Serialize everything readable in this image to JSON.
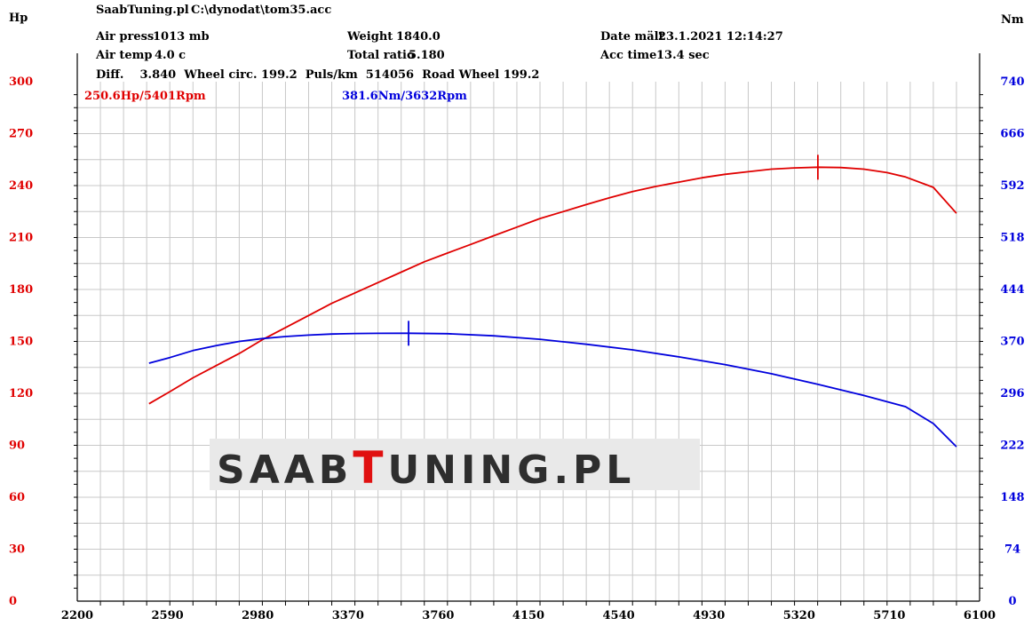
{
  "header": {
    "source": "SaabTuning.pl",
    "file": "C:\\dynodat\\tom35.acc",
    "air_press_label": "Air press",
    "air_press_value": "1013 mb",
    "air_temp_label": "Air temp",
    "air_temp_value": "4.0 c",
    "weight_label": "Weight",
    "weight_value": "1840.0",
    "total_ratio_label": "Total ratio",
    "total_ratio_value": "5.180",
    "date_label": "Date mält",
    "date_value": "23.1.2021 12:14:27",
    "acc_time_label": "Acc time",
    "acc_time_value": "13.4 sec",
    "diff_line": "Diff.    3.840  Wheel circ. 199.2  Puls/km  514056  Road Wheel 199.2"
  },
  "watermark": {
    "pre": "SAAB",
    "accent": "T",
    "post": "UNING",
    "dot": ".",
    "tld": "PL",
    "accent_color": "#e01010"
  },
  "chart_data": {
    "type": "line",
    "x_ticks": [
      "2200",
      "2590",
      "2980",
      "3370",
      "3760",
      "4150",
      "4540",
      "4930",
      "5320",
      "5710",
      "6100"
    ],
    "xlim": [
      2200,
      6100
    ],
    "left_axis": {
      "label": "Hp",
      "ticks": [
        "0",
        "30",
        "60",
        "90",
        "120",
        "150",
        "180",
        "210",
        "240",
        "270",
        "300"
      ],
      "ylim": [
        0,
        300
      ],
      "color": "#e00000"
    },
    "right_axis": {
      "label": "Nm",
      "ticks": [
        "0",
        "74",
        "148",
        "222",
        "296",
        "370",
        "444",
        "518",
        "592",
        "666",
        "740"
      ],
      "ylim": [
        0,
        740
      ],
      "color": "#0000dd"
    },
    "grid": true,
    "series": [
      {
        "axis": "left",
        "color": "#e00000",
        "peak_label": "250.6Hp/5401Rpm",
        "peak": {
          "x": 5401,
          "y": 250.6
        },
        "x": [
          2510,
          2600,
          2700,
          2800,
          2900,
          3000,
          3100,
          3200,
          3300,
          3400,
          3500,
          3600,
          3700,
          3800,
          3900,
          4000,
          4100,
          4200,
          4300,
          4400,
          4500,
          4600,
          4700,
          4800,
          4900,
          5000,
          5100,
          5200,
          5300,
          5401,
          5500,
          5600,
          5700,
          5780,
          5900,
          6000
        ],
        "y": [
          114,
          121,
          129,
          136,
          143,
          151,
          158,
          165,
          172,
          178,
          184,
          190,
          196,
          201,
          206,
          211,
          216,
          221,
          225,
          229,
          233,
          236.5,
          239.5,
          242,
          244.5,
          246.5,
          248,
          249.5,
          250.2,
          250.6,
          250.4,
          249.5,
          247.5,
          245,
          239,
          224
        ]
      },
      {
        "axis": "right",
        "color": "#0000dd",
        "peak_label": "381.6Nm/3632Rpm",
        "peak": {
          "x": 3632,
          "y": 381.6
        },
        "x": [
          2510,
          2600,
          2700,
          2800,
          2900,
          3000,
          3100,
          3200,
          3300,
          3400,
          3500,
          3632,
          3800,
          4000,
          4200,
          4400,
          4600,
          4800,
          5000,
          5200,
          5400,
          5600,
          5780,
          5900,
          6000
        ],
        "y": [
          339,
          347,
          357,
          364,
          370,
          374,
          377,
          379,
          380.5,
          381.2,
          381.5,
          381.6,
          381,
          378,
          373,
          366,
          358,
          348,
          337,
          324,
          309,
          293,
          277,
          253,
          220
        ]
      }
    ]
  }
}
